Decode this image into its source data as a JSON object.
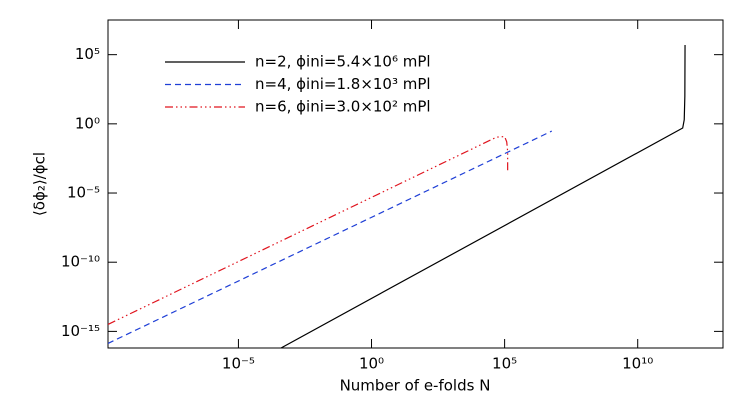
{
  "chart_data": {
    "type": "line",
    "x_label": "Number of e-folds N",
    "y_label": "⟨δϕ₂⟩/ϕcl",
    "xscale": "log",
    "yscale": "log",
    "xlim": [
      1.26e-10,
      16000000000000.0
    ],
    "ylim": [
      6.3e-17,
      32000000.0
    ],
    "xticks": [
      {
        "value": 1e-05,
        "label": "10⁻⁵"
      },
      {
        "value": 1,
        "label": "10⁰"
      },
      {
        "value": 100000.0,
        "label": "10⁵"
      },
      {
        "value": 10000000000.0,
        "label": "10¹⁰"
      }
    ],
    "yticks": [
      {
        "value": 1e-15,
        "label": "10⁻¹⁵"
      },
      {
        "value": 1e-10,
        "label": "10⁻¹⁰"
      },
      {
        "value": 1e-05,
        "label": "10⁻⁵"
      },
      {
        "value": 1,
        "label": "10⁰"
      },
      {
        "value": 100000.0,
        "label": "10⁵"
      }
    ],
    "legend": "upper-left",
    "series": [
      {
        "name": "n=2, ϕini=5.4×10⁶ mPl",
        "color": "#000000",
        "linestyle": "solid",
        "x": [
          0.000398,
          490000000000.0,
          560000000000.0,
          590000000000.0,
          600000000000.0
        ],
        "values": [
          6.3e-17,
          0.5,
          2,
          100,
          500000.0
        ]
      },
      {
        "name": "n=4, ϕini=1.8×10³ mPl",
        "color": "#1f3fd6",
        "linestyle": "dashed",
        "x": [
          1.26e-10,
          5900000.0
        ],
        "values": [
          1.35e-16,
          0.3
        ]
      },
      {
        "name": "n=6, ϕini=3.0×10² mPl",
        "color": "#e0141e",
        "linestyle": "dashdotdotted",
        "x": [
          1.26e-10,
          50000.0,
          100000.0,
          120000.0,
          130000.0,
          130000.0
        ],
        "values": [
          3.2e-15,
          0.11,
          0.12,
          0.05,
          0.01,
          0.0003
        ]
      }
    ]
  }
}
